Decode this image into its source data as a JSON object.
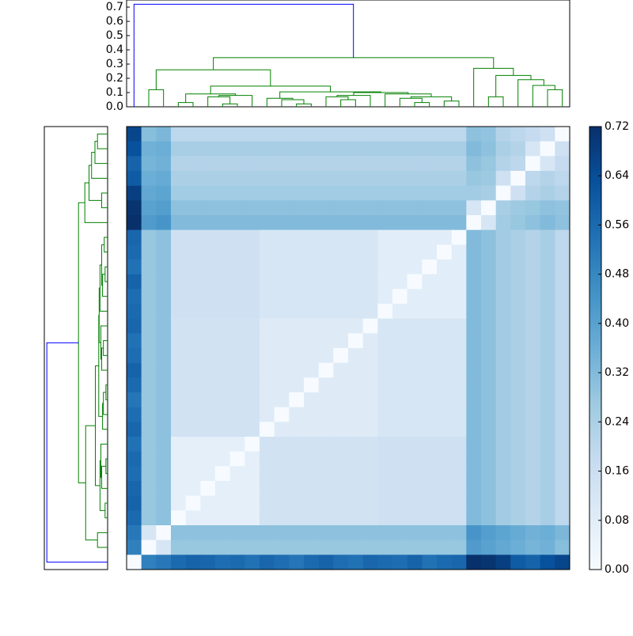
{
  "chart_data": {
    "type": "heatmap",
    "cmap": "Blues",
    "vlim": [
      0,
      0.72
    ],
    "colorbar_ticks": [
      {
        "value": 0,
        "label": "0.00"
      },
      0.08,
      0.16,
      0.24,
      0.32,
      {
        "value": 0.4,
        "label": "0.40"
      },
      0.48,
      0.56,
      0.64,
      0.72
    ],
    "values": [
      [
        0.66,
        0.31,
        0.33,
        0.2,
        0.2,
        0.2,
        0.2,
        0.2,
        0.2,
        0.2,
        0.2,
        0.2,
        0.2,
        0.2,
        0.2,
        0.2,
        0.2,
        0.2,
        0.2,
        0.2,
        0.2,
        0.2,
        0.2,
        0.3,
        0.29,
        0.22,
        0.2,
        0.18,
        0.15,
        0
      ],
      [
        0.63,
        0.35,
        0.36,
        0.25,
        0.25,
        0.25,
        0.25,
        0.25,
        0.25,
        0.25,
        0.25,
        0.25,
        0.25,
        0.25,
        0.25,
        0.25,
        0.25,
        0.25,
        0.25,
        0.25,
        0.25,
        0.25,
        0.25,
        0.32,
        0.3,
        0.24,
        0.22,
        0.12,
        0,
        0.15
      ],
      [
        0.58,
        0.34,
        0.35,
        0.22,
        0.22,
        0.22,
        0.22,
        0.22,
        0.22,
        0.22,
        0.22,
        0.22,
        0.22,
        0.22,
        0.22,
        0.22,
        0.22,
        0.22,
        0.22,
        0.22,
        0.22,
        0.22,
        0.22,
        0.3,
        0.28,
        0.22,
        0.2,
        0,
        0.12,
        0.18
      ],
      [
        0.6,
        0.36,
        0.37,
        0.24,
        0.24,
        0.24,
        0.24,
        0.24,
        0.24,
        0.24,
        0.24,
        0.24,
        0.24,
        0.24,
        0.24,
        0.24,
        0.24,
        0.24,
        0.24,
        0.24,
        0.24,
        0.24,
        0.24,
        0.28,
        0.27,
        0.15,
        0,
        0.2,
        0.22,
        0.2
      ],
      [
        0.68,
        0.38,
        0.39,
        0.26,
        0.26,
        0.26,
        0.26,
        0.26,
        0.26,
        0.26,
        0.26,
        0.26,
        0.26,
        0.26,
        0.26,
        0.26,
        0.26,
        0.26,
        0.26,
        0.26,
        0.26,
        0.26,
        0.26,
        0.26,
        0.25,
        0,
        0.15,
        0.22,
        0.24,
        0.22
      ],
      [
        0.71,
        0.4,
        0.41,
        0.3,
        0.3,
        0.3,
        0.3,
        0.3,
        0.3,
        0.3,
        0.3,
        0.3,
        0.3,
        0.3,
        0.3,
        0.3,
        0.3,
        0.3,
        0.3,
        0.3,
        0.3,
        0.3,
        0.3,
        0.12,
        0,
        0.25,
        0.27,
        0.28,
        0.3,
        0.29
      ],
      [
        0.72,
        0.42,
        0.44,
        0.32,
        0.32,
        0.32,
        0.32,
        0.32,
        0.32,
        0.32,
        0.32,
        0.32,
        0.32,
        0.32,
        0.32,
        0.32,
        0.32,
        0.32,
        0.32,
        0.32,
        0.32,
        0.32,
        0.32,
        0,
        0.12,
        0.26,
        0.28,
        0.3,
        0.32,
        0.3
      ],
      [
        0.57,
        0.28,
        0.3,
        0.15,
        0.15,
        0.15,
        0.15,
        0.15,
        0.15,
        0.12,
        0.12,
        0.12,
        0.12,
        0.12,
        0.12,
        0.12,
        0.12,
        0.08,
        0.08,
        0.08,
        0.08,
        0.08,
        0,
        0.32,
        0.3,
        0.26,
        0.24,
        0.22,
        0.25,
        0.2
      ],
      [
        0.56,
        0.28,
        0.3,
        0.15,
        0.15,
        0.15,
        0.15,
        0.15,
        0.15,
        0.12,
        0.12,
        0.12,
        0.12,
        0.12,
        0.12,
        0.12,
        0.12,
        0.08,
        0.08,
        0.08,
        0.08,
        0,
        0.08,
        0.32,
        0.3,
        0.26,
        0.24,
        0.22,
        0.25,
        0.2
      ],
      [
        0.54,
        0.28,
        0.3,
        0.15,
        0.15,
        0.15,
        0.15,
        0.15,
        0.15,
        0.12,
        0.12,
        0.12,
        0.12,
        0.12,
        0.12,
        0.12,
        0.12,
        0.08,
        0.08,
        0.08,
        0,
        0.08,
        0.08,
        0.32,
        0.3,
        0.26,
        0.24,
        0.22,
        0.25,
        0.2
      ],
      [
        0.58,
        0.28,
        0.3,
        0.15,
        0.15,
        0.15,
        0.15,
        0.15,
        0.15,
        0.12,
        0.12,
        0.12,
        0.12,
        0.12,
        0.12,
        0.12,
        0.12,
        0.08,
        0.08,
        0,
        0.08,
        0.08,
        0.08,
        0.32,
        0.3,
        0.26,
        0.24,
        0.22,
        0.25,
        0.2
      ],
      [
        0.55,
        0.28,
        0.3,
        0.15,
        0.15,
        0.15,
        0.15,
        0.15,
        0.15,
        0.12,
        0.12,
        0.12,
        0.12,
        0.12,
        0.12,
        0.12,
        0.12,
        0.08,
        0,
        0.08,
        0.08,
        0.08,
        0.08,
        0.32,
        0.3,
        0.26,
        0.24,
        0.22,
        0.25,
        0.2
      ],
      [
        0.56,
        0.28,
        0.3,
        0.15,
        0.15,
        0.15,
        0.15,
        0.15,
        0.15,
        0.12,
        0.12,
        0.12,
        0.12,
        0.12,
        0.12,
        0.12,
        0.12,
        0,
        0.08,
        0.08,
        0.08,
        0.08,
        0.08,
        0.32,
        0.3,
        0.26,
        0.24,
        0.22,
        0.25,
        0.2
      ],
      [
        0.57,
        0.28,
        0.3,
        0.14,
        0.14,
        0.14,
        0.14,
        0.14,
        0.14,
        0.09,
        0.09,
        0.09,
        0.09,
        0.09,
        0.09,
        0.09,
        0,
        0.12,
        0.12,
        0.12,
        0.12,
        0.12,
        0.12,
        0.32,
        0.3,
        0.26,
        0.24,
        0.22,
        0.25,
        0.2
      ],
      [
        0.54,
        0.28,
        0.3,
        0.14,
        0.14,
        0.14,
        0.14,
        0.14,
        0.14,
        0.09,
        0.09,
        0.09,
        0.09,
        0.09,
        0.09,
        0,
        0.09,
        0.12,
        0.12,
        0.12,
        0.12,
        0.12,
        0.12,
        0.32,
        0.3,
        0.26,
        0.24,
        0.22,
        0.25,
        0.2
      ],
      [
        0.55,
        0.28,
        0.3,
        0.14,
        0.14,
        0.14,
        0.14,
        0.14,
        0.14,
        0.09,
        0.09,
        0.09,
        0.09,
        0.09,
        0,
        0.09,
        0.09,
        0.12,
        0.12,
        0.12,
        0.12,
        0.12,
        0.12,
        0.32,
        0.3,
        0.26,
        0.24,
        0.22,
        0.25,
        0.2
      ],
      [
        0.58,
        0.28,
        0.3,
        0.14,
        0.14,
        0.14,
        0.14,
        0.14,
        0.14,
        0.09,
        0.09,
        0.09,
        0.09,
        0,
        0.09,
        0.09,
        0.09,
        0.12,
        0.12,
        0.12,
        0.12,
        0.12,
        0.12,
        0.32,
        0.3,
        0.26,
        0.24,
        0.22,
        0.25,
        0.2
      ],
      [
        0.56,
        0.28,
        0.3,
        0.14,
        0.14,
        0.14,
        0.14,
        0.14,
        0.14,
        0.09,
        0.09,
        0.09,
        0,
        0.09,
        0.09,
        0.09,
        0.09,
        0.12,
        0.12,
        0.12,
        0.12,
        0.12,
        0.12,
        0.32,
        0.3,
        0.26,
        0.24,
        0.22,
        0.25,
        0.2
      ],
      [
        0.53,
        0.28,
        0.3,
        0.14,
        0.14,
        0.14,
        0.14,
        0.14,
        0.14,
        0.09,
        0.09,
        0,
        0.09,
        0.09,
        0.09,
        0.09,
        0.09,
        0.12,
        0.12,
        0.12,
        0.12,
        0.12,
        0.12,
        0.32,
        0.3,
        0.26,
        0.24,
        0.22,
        0.25,
        0.2
      ],
      [
        0.55,
        0.28,
        0.3,
        0.14,
        0.14,
        0.14,
        0.14,
        0.14,
        0.14,
        0.09,
        0,
        0.09,
        0.09,
        0.09,
        0.09,
        0.09,
        0.09,
        0.12,
        0.12,
        0.12,
        0.12,
        0.12,
        0.12,
        0.32,
        0.3,
        0.26,
        0.24,
        0.22,
        0.25,
        0.2
      ],
      [
        0.57,
        0.28,
        0.3,
        0.14,
        0.14,
        0.14,
        0.14,
        0.14,
        0.14,
        0,
        0.09,
        0.09,
        0.09,
        0.09,
        0.09,
        0.09,
        0.09,
        0.12,
        0.12,
        0.12,
        0.12,
        0.12,
        0.12,
        0.32,
        0.3,
        0.26,
        0.24,
        0.22,
        0.25,
        0.2
      ],
      [
        0.54,
        0.28,
        0.3,
        0.07,
        0.07,
        0.07,
        0.07,
        0.07,
        0,
        0.14,
        0.14,
        0.14,
        0.14,
        0.14,
        0.14,
        0.14,
        0.14,
        0.15,
        0.15,
        0.15,
        0.15,
        0.15,
        0.15,
        0.32,
        0.3,
        0.26,
        0.24,
        0.22,
        0.25,
        0.2
      ],
      [
        0.56,
        0.28,
        0.3,
        0.07,
        0.07,
        0.07,
        0.07,
        0,
        0.07,
        0.14,
        0.14,
        0.14,
        0.14,
        0.14,
        0.14,
        0.14,
        0.14,
        0.15,
        0.15,
        0.15,
        0.15,
        0.15,
        0.15,
        0.32,
        0.3,
        0.26,
        0.24,
        0.22,
        0.25,
        0.2
      ],
      [
        0.55,
        0.28,
        0.3,
        0.07,
        0.07,
        0.07,
        0,
        0.07,
        0.07,
        0.14,
        0.14,
        0.14,
        0.14,
        0.14,
        0.14,
        0.14,
        0.14,
        0.15,
        0.15,
        0.15,
        0.15,
        0.15,
        0.15,
        0.32,
        0.3,
        0.26,
        0.24,
        0.22,
        0.25,
        0.2
      ],
      [
        0.57,
        0.28,
        0.3,
        0.07,
        0.07,
        0,
        0.07,
        0.07,
        0.07,
        0.14,
        0.14,
        0.14,
        0.14,
        0.14,
        0.14,
        0.14,
        0.14,
        0.15,
        0.15,
        0.15,
        0.15,
        0.15,
        0.15,
        0.32,
        0.3,
        0.26,
        0.24,
        0.22,
        0.25,
        0.2
      ],
      [
        0.58,
        0.28,
        0.3,
        0.07,
        0,
        0.07,
        0.07,
        0.07,
        0.07,
        0.14,
        0.14,
        0.14,
        0.14,
        0.14,
        0.14,
        0.14,
        0.14,
        0.15,
        0.15,
        0.15,
        0.15,
        0.15,
        0.15,
        0.32,
        0.3,
        0.26,
        0.24,
        0.22,
        0.25,
        0.2
      ],
      [
        0.56,
        0.28,
        0.3,
        0,
        0.07,
        0.07,
        0.07,
        0.07,
        0.07,
        0.14,
        0.14,
        0.14,
        0.14,
        0.14,
        0.14,
        0.14,
        0.14,
        0.15,
        0.15,
        0.15,
        0.15,
        0.15,
        0.15,
        0.32,
        0.3,
        0.26,
        0.24,
        0.22,
        0.25,
        0.2
      ],
      [
        0.52,
        0.12,
        0,
        0.3,
        0.3,
        0.3,
        0.3,
        0.3,
        0.3,
        0.3,
        0.3,
        0.3,
        0.3,
        0.3,
        0.3,
        0.3,
        0.3,
        0.3,
        0.3,
        0.3,
        0.3,
        0.3,
        0.3,
        0.44,
        0.41,
        0.39,
        0.37,
        0.35,
        0.36,
        0.33
      ],
      [
        0.5,
        0,
        0.12,
        0.28,
        0.28,
        0.28,
        0.28,
        0.28,
        0.28,
        0.28,
        0.28,
        0.28,
        0.28,
        0.28,
        0.28,
        0.28,
        0.28,
        0.28,
        0.28,
        0.28,
        0.28,
        0.28,
        0.28,
        0.42,
        0.4,
        0.38,
        0.36,
        0.34,
        0.35,
        0.31
      ],
      [
        0,
        0.5,
        0.52,
        0.56,
        0.58,
        0.57,
        0.55,
        0.56,
        0.54,
        0.57,
        0.55,
        0.53,
        0.56,
        0.58,
        0.55,
        0.54,
        0.57,
        0.56,
        0.55,
        0.58,
        0.54,
        0.56,
        0.57,
        0.72,
        0.71,
        0.68,
        0.6,
        0.58,
        0.63,
        0.66
      ]
    ],
    "dendrogram": {
      "ylim": [
        0,
        0.75
      ],
      "yticks": [
        {
          "value": 0,
          "label": "0.0"
        },
        0.1,
        0.2,
        0.3,
        0.4,
        0.5,
        0.6,
        0.7
      ],
      "link_color": "#008000",
      "root_link_color": "#0000ff",
      "linkage": [
        [
          3,
          4,
          0.03
        ],
        [
          6,
          7,
          0.02
        ],
        [
          5,
          31,
          0.07
        ],
        [
          32,
          8,
          0.08
        ],
        [
          30,
          33,
          0.09
        ],
        [
          11,
          12,
          0.02
        ],
        [
          10,
          35,
          0.05
        ],
        [
          9,
          36,
          0.06
        ],
        [
          14,
          15,
          0.05
        ],
        [
          13,
          38,
          0.07
        ],
        [
          39,
          16,
          0.08
        ],
        [
          19,
          20,
          0.03
        ],
        [
          18,
          41,
          0.06
        ],
        [
          21,
          22,
          0.04
        ],
        [
          42,
          43,
          0.07
        ],
        [
          17,
          44,
          0.09
        ],
        [
          40,
          45,
          0.1
        ],
        [
          37,
          46,
          0.105
        ],
        [
          34,
          47,
          0.145
        ],
        [
          1,
          2,
          0.12
        ],
        [
          49,
          48,
          0.26
        ],
        [
          24,
          25,
          0.07
        ],
        [
          28,
          29,
          0.12
        ],
        [
          27,
          52,
          0.15
        ],
        [
          26,
          53,
          0.19
        ],
        [
          51,
          54,
          0.22
        ],
        [
          23,
          55,
          0.27
        ],
        [
          50,
          56,
          0.345
        ],
        [
          0,
          57,
          0.72
        ]
      ]
    }
  }
}
